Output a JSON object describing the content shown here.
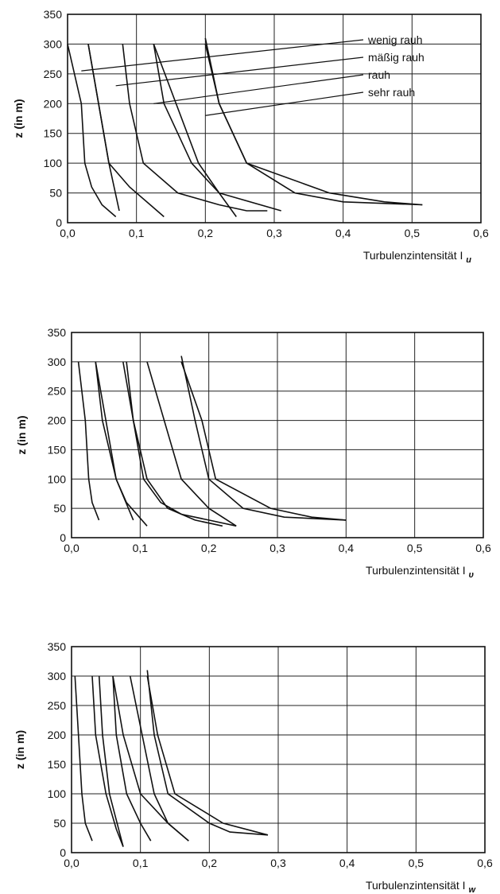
{
  "chart_data": [
    {
      "type": "line",
      "panel": "Iu",
      "xlabel": "Turbulenzintensität I",
      "xlabel_sub": "u",
      "ylabel": "z (in m)",
      "xlim": [
        0,
        0.6
      ],
      "ylim": [
        0,
        350
      ],
      "x_ticks": [
        "0,0",
        "0,1",
        "0,2",
        "0,3",
        "0,4",
        "0,5",
        "0,6"
      ],
      "y_ticks": [
        "0",
        "50",
        "100",
        "150",
        "200",
        "250",
        "300",
        "350"
      ],
      "grid": true,
      "legend": [
        "wenig rauh",
        "mäßig rauh",
        "rauh",
        "sehr rauh"
      ],
      "legend_position": "top-right",
      "series": [
        {
          "x": [
            0.0,
            0.02,
            0.025,
            0.035,
            0.05,
            0.07
          ],
          "y": [
            300,
            200,
            100,
            60,
            30,
            10
          ]
        },
        {
          "x": [
            0.03,
            0.045,
            0.06,
            0.09,
            0.12,
            0.14
          ],
          "y": [
            300,
            200,
            100,
            60,
            30,
            10
          ]
        },
        {
          "x": [
            0.125,
            0.14,
            0.18,
            0.22,
            0.245
          ],
          "y": [
            300,
            200,
            100,
            50,
            10
          ]
        },
        {
          "x": [
            0.2,
            0.22,
            0.26,
            0.33,
            0.4,
            0.515
          ],
          "y": [
            310,
            200,
            100,
            50,
            35,
            30
          ]
        },
        {
          "x": [
            0.03,
            0.045,
            0.06,
            0.075
          ],
          "y": [
            300,
            200,
            100,
            20
          ]
        },
        {
          "x": [
            0.08,
            0.09,
            0.11,
            0.16,
            0.22,
            0.26,
            0.29
          ],
          "y": [
            300,
            200,
            100,
            50,
            30,
            20,
            20
          ]
        },
        {
          "x": [
            0.125,
            0.19,
            0.22,
            0.31
          ],
          "y": [
            300,
            100,
            50,
            20
          ]
        },
        {
          "x": [
            0.2,
            0.22,
            0.26,
            0.38,
            0.46,
            0.515
          ],
          "y": [
            300,
            200,
            100,
            50,
            35,
            30
          ]
        }
      ]
    },
    {
      "type": "line",
      "panel": "Iv",
      "xlabel": "Turbulenzintensität I",
      "xlabel_sub": "υ",
      "ylabel": "z (in m)",
      "xlim": [
        0,
        0.6
      ],
      "ylim": [
        0,
        350
      ],
      "x_ticks": [
        "0,0",
        "0,1",
        "0,2",
        "0,3",
        "0,4",
        "0,5",
        "0,6"
      ],
      "y_ticks": [
        "0",
        "50",
        "100",
        "150",
        "200",
        "250",
        "300",
        "350"
      ],
      "grid": true,
      "series": [
        {
          "x": [
            0.01,
            0.02,
            0.025,
            0.03,
            0.04
          ],
          "y": [
            300,
            200,
            100,
            60,
            30
          ]
        },
        {
          "x": [
            0.035,
            0.05,
            0.065,
            0.08,
            0.11
          ],
          "y": [
            300,
            200,
            100,
            60,
            20
          ]
        },
        {
          "x": [
            0.08,
            0.09,
            0.11,
            0.14,
            0.18,
            0.22
          ],
          "y": [
            300,
            200,
            100,
            50,
            30,
            20
          ]
        },
        {
          "x": [
            0.16,
            0.18,
            0.2,
            0.25,
            0.31,
            0.4
          ],
          "y": [
            310,
            200,
            100,
            50,
            35,
            30
          ]
        },
        {
          "x": [
            0.035,
            0.045,
            0.065,
            0.09
          ],
          "y": [
            300,
            200,
            100,
            30
          ]
        },
        {
          "x": [
            0.075,
            0.09,
            0.105,
            0.13,
            0.16,
            0.2,
            0.24
          ],
          "y": [
            300,
            200,
            100,
            60,
            40,
            30,
            20
          ]
        },
        {
          "x": [
            0.11,
            0.16,
            0.2,
            0.24
          ],
          "y": [
            300,
            100,
            50,
            20
          ]
        },
        {
          "x": [
            0.16,
            0.19,
            0.21,
            0.29,
            0.35,
            0.4
          ],
          "y": [
            300,
            200,
            100,
            50,
            35,
            30
          ]
        }
      ]
    },
    {
      "type": "line",
      "panel": "Iw",
      "xlabel": "Turbulenzintensität I",
      "xlabel_sub": "w",
      "ylabel": "z (in m)",
      "xlim": [
        0,
        0.6
      ],
      "ylim": [
        0,
        350
      ],
      "x_ticks": [
        "0,0",
        "0,1",
        "0,2",
        "0,3",
        "0,4",
        "0,5",
        "0,6"
      ],
      "y_ticks": [
        "0",
        "50",
        "100",
        "150",
        "200",
        "250",
        "300",
        "350"
      ],
      "grid": true,
      "series": [
        {
          "x": [
            0.005,
            0.01,
            0.015,
            0.02,
            0.03
          ],
          "y": [
            300,
            200,
            100,
            50,
            20
          ]
        },
        {
          "x": [
            0.03,
            0.035,
            0.05,
            0.065,
            0.075
          ],
          "y": [
            300,
            200,
            100,
            40,
            10
          ]
        },
        {
          "x": [
            0.06,
            0.065,
            0.08,
            0.1,
            0.115
          ],
          "y": [
            300,
            200,
            100,
            50,
            20
          ]
        },
        {
          "x": [
            0.11,
            0.12,
            0.14,
            0.2,
            0.23,
            0.285
          ],
          "y": [
            310,
            200,
            100,
            50,
            35,
            30
          ]
        },
        {
          "x": [
            0.04,
            0.045,
            0.055,
            0.075
          ],
          "y": [
            300,
            200,
            100,
            10
          ]
        },
        {
          "x": [
            0.06,
            0.075,
            0.1,
            0.14,
            0.17
          ],
          "y": [
            300,
            200,
            100,
            50,
            20
          ]
        },
        {
          "x": [
            0.085,
            0.12,
            0.14,
            0.17
          ],
          "y": [
            300,
            100,
            50,
            20
          ]
        },
        {
          "x": [
            0.11,
            0.125,
            0.15,
            0.22,
            0.285
          ],
          "y": [
            300,
            200,
            100,
            50,
            30
          ]
        }
      ]
    }
  ]
}
